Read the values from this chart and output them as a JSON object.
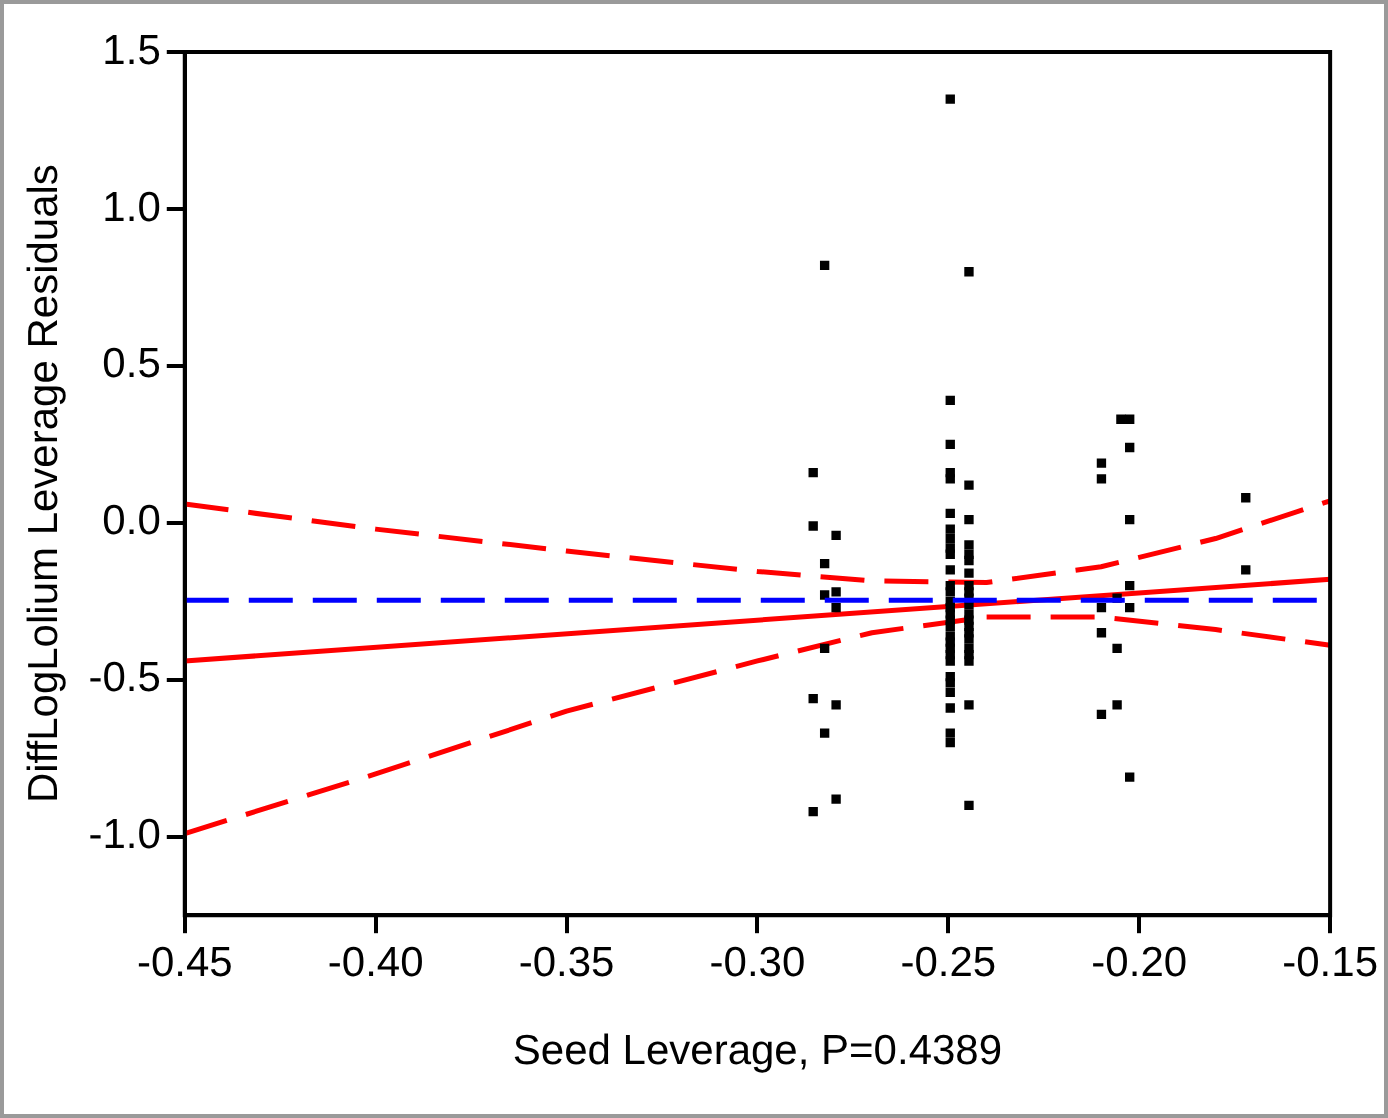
{
  "chart_data": {
    "type": "scatter",
    "xlabel": "Seed Leverage, P=0.4389",
    "ylabel": "DiffLogLolium Leverage Residuals",
    "xlim": [
      -0.45,
      -0.15
    ],
    "xticks": [
      -0.45,
      {
        "value": -0.4,
        "label": "-0.40"
      },
      -0.35,
      {
        "value": -0.3,
        "label": "-0.30"
      },
      -0.25,
      {
        "value": -0.2,
        "label": "-0.20"
      },
      -0.15
    ],
    "ylim": [
      -1.25,
      1.5
    ],
    "yticks": [
      {
        "value": -1,
        "label": "-1.0"
      },
      -0.5,
      {
        "value": 0,
        "label": "0.0"
      },
      0.5,
      {
        "value": 1,
        "label": "1.0"
      },
      1.5
    ],
    "grid": false,
    "legend": false,
    "series": [
      {
        "marker": "square",
        "color": "#000000",
        "x": [
          -0.2854,
          -0.2854,
          -0.2854,
          -0.2854,
          -0.2824,
          -0.2824,
          -0.2824,
          -0.2824,
          -0.2824,
          -0.2794,
          -0.2794,
          -0.2794,
          -0.2794,
          -0.2794,
          -0.2495,
          -0.2495,
          -0.2495,
          -0.2495,
          -0.2495,
          -0.2495,
          -0.2495,
          -0.2495,
          -0.2495,
          -0.2495,
          -0.2495,
          -0.2495,
          -0.2495,
          -0.2495,
          -0.2495,
          -0.2495,
          -0.2495,
          -0.2495,
          -0.2495,
          -0.2495,
          -0.2495,
          -0.2495,
          -0.2495,
          -0.2495,
          -0.2495,
          -0.2495,
          -0.2495,
          -0.2495,
          -0.2495,
          -0.2446,
          -0.2446,
          -0.2446,
          -0.2446,
          -0.2446,
          -0.2446,
          -0.2446,
          -0.2446,
          -0.2446,
          -0.2446,
          -0.2446,
          -0.2446,
          -0.2446,
          -0.2446,
          -0.2446,
          -0.2446,
          -0.2446,
          -0.2446,
          -0.2446,
          -0.2446,
          -0.2446,
          -0.2099,
          -0.2099,
          -0.2099,
          -0.2099,
          -0.2099,
          -0.2058,
          -0.2058,
          -0.2058,
          -0.2048,
          -0.2025,
          -0.2025,
          -0.2025,
          -0.2025,
          -0.2025,
          -0.2025,
          -0.1721,
          -0.1721
        ],
        "values": [
          0.16,
          -0.01,
          -0.56,
          -0.92,
          0.82,
          -0.13,
          -0.23,
          -0.4,
          -0.67,
          -0.04,
          -0.22,
          -0.27,
          -0.58,
          -0.88,
          1.35,
          0.39,
          0.25,
          0.16,
          0.14,
          0.03,
          -0.02,
          -0.05,
          -0.08,
          -0.1,
          -0.15,
          -0.2,
          -0.22,
          -0.25,
          -0.27,
          -0.29,
          -0.31,
          -0.33,
          -0.36,
          -0.38,
          -0.4,
          -0.42,
          -0.44,
          -0.49,
          -0.51,
          -0.54,
          -0.59,
          -0.67,
          -0.7,
          0.8,
          0.12,
          0.01,
          -0.07,
          -0.1,
          -0.12,
          -0.16,
          -0.2,
          -0.22,
          -0.24,
          -0.26,
          -0.29,
          -0.31,
          -0.33,
          -0.35,
          -0.37,
          -0.4,
          -0.42,
          -0.44,
          -0.58,
          -0.9,
          0.19,
          0.14,
          -0.27,
          -0.35,
          -0.61,
          -0.24,
          -0.4,
          -0.58,
          0.33,
          0.33,
          0.24,
          0.01,
          -0.2,
          -0.27,
          -0.81,
          0.08,
          -0.15
        ]
      },
      {
        "type": "line",
        "marker": "none",
        "color": "#ff0000",
        "line_style": "solid",
        "x": [
          -0.45,
          -0.15
        ],
        "values": [
          -0.44,
          -0.18
        ]
      },
      {
        "type": "line",
        "marker": "none",
        "color": "#ff0000",
        "line_style": "dashed",
        "x": [
          -0.45,
          -0.4,
          -0.35,
          -0.3,
          -0.27,
          -0.24,
          -0.21,
          -0.18,
          -0.15
        ],
        "values": [
          0.06,
          -0.02,
          -0.09,
          -0.155,
          -0.185,
          -0.19,
          -0.14,
          -0.05,
          0.07
        ]
      },
      {
        "type": "line",
        "marker": "none",
        "color": "#ff0000",
        "line_style": "dashed",
        "x": [
          -0.45,
          -0.4,
          -0.35,
          -0.3,
          -0.27,
          -0.24,
          -0.21,
          -0.18,
          -0.15
        ],
        "values": [
          -0.99,
          -0.8,
          -0.6,
          -0.44,
          -0.35,
          -0.3,
          -0.3,
          -0.34,
          -0.39
        ]
      }
    ],
    "ref_lines": [
      {
        "axis": "y",
        "value": -0.247,
        "color": "#0000ff",
        "line_style": "dashed"
      }
    ]
  }
}
